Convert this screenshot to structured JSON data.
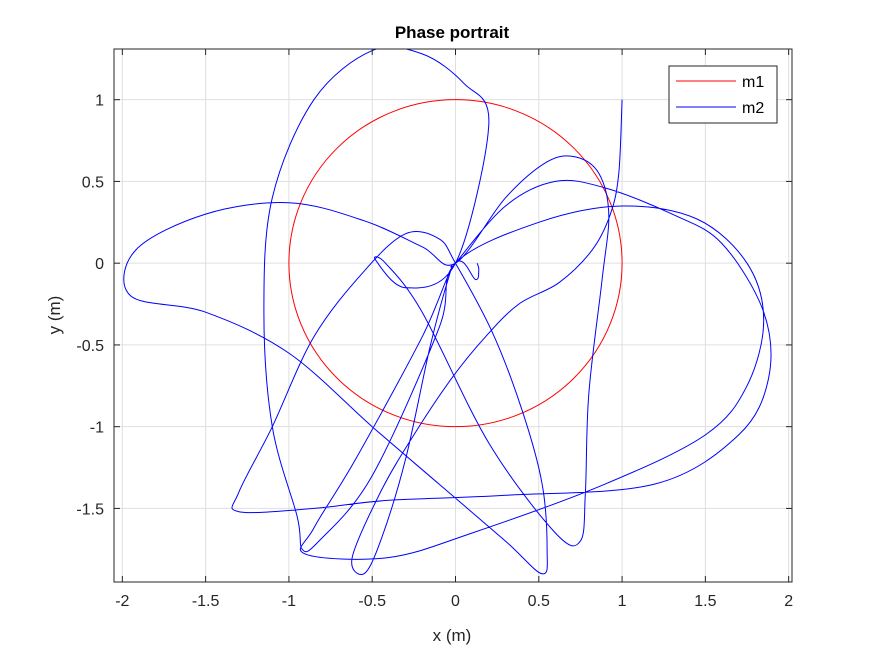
{
  "chart_data": {
    "type": "line",
    "title": "Phase portrait",
    "xlabel": "x (m)",
    "ylabel": "y (m)",
    "xlim": [
      -2.05,
      2.02
    ],
    "ylim": [
      -1.95,
      1.31
    ],
    "xticks": [
      -2,
      -1.5,
      -1,
      -0.5,
      0,
      0.5,
      1,
      1.5,
      2
    ],
    "yticks": [
      -1.5,
      -1,
      -0.5,
      0,
      0.5,
      1
    ],
    "xtick_labels": [
      "-2",
      "-1.5",
      "-1",
      "-0.5",
      "0",
      "0.5",
      "1",
      "1.5",
      "2"
    ],
    "ytick_labels": [
      "-1.5",
      "-1",
      "-0.5",
      "0",
      "0.5",
      "1"
    ],
    "grid": true,
    "legend_position": "top-right",
    "colors": {
      "m1": "#ff0000",
      "m2": "#0000ff"
    },
    "series": [
      {
        "name": "m1",
        "kind": "circle",
        "center": [
          0,
          0
        ],
        "radius": 1
      },
      {
        "name": "m2",
        "points": [
          [
            1.0,
            1.0
          ],
          [
            0.98,
            0.55
          ],
          [
            0.93,
            0.3
          ],
          [
            0.82,
            0.08
          ],
          [
            0.62,
            -0.12
          ],
          [
            0.38,
            -0.25
          ],
          [
            0.18,
            -0.45
          ],
          [
            -0.02,
            -0.7
          ],
          [
            -0.25,
            -1.05
          ],
          [
            -0.45,
            -1.4
          ],
          [
            -0.62,
            -1.8
          ],
          [
            -0.55,
            -1.9
          ],
          [
            -0.45,
            -1.7
          ],
          [
            -0.3,
            -1.2
          ],
          [
            -0.15,
            -0.5
          ],
          [
            -0.03,
            -0.05
          ],
          [
            0,
            0
          ],
          [
            0.3,
            0.35
          ],
          [
            0.6,
            0.5
          ],
          [
            0.9,
            0.46
          ],
          [
            1.3,
            0.3
          ],
          [
            1.6,
            0.12
          ],
          [
            1.85,
            -0.3
          ],
          [
            1.88,
            -0.7
          ],
          [
            1.7,
            -1.05
          ],
          [
            1.2,
            -1.35
          ],
          [
            0.3,
            -1.42
          ],
          [
            -0.4,
            -1.45
          ],
          [
            -0.85,
            -1.5
          ],
          [
            -1.3,
            -1.52
          ],
          [
            -1.3,
            -1.4
          ],
          [
            -1.1,
            -1.0
          ],
          [
            -0.85,
            -0.45
          ],
          [
            -0.55,
            -0.05
          ],
          [
            -0.3,
            0.18
          ],
          [
            -0.1,
            0.15
          ],
          [
            0,
            0
          ],
          [
            0.22,
            -0.42
          ],
          [
            0.4,
            -0.9
          ],
          [
            0.52,
            -1.35
          ],
          [
            0.55,
            -1.75
          ],
          [
            0.52,
            -1.9
          ],
          [
            0.3,
            -1.7
          ],
          [
            -0.1,
            -1.35
          ],
          [
            -0.5,
            -1.0
          ],
          [
            -1.0,
            -0.55
          ],
          [
            -1.5,
            -0.3
          ],
          [
            -1.95,
            -0.2
          ],
          [
            -1.92,
            0.08
          ],
          [
            -1.5,
            0.3
          ],
          [
            -1.0,
            0.37
          ],
          [
            -0.55,
            0.26
          ],
          [
            -0.2,
            0.1
          ],
          [
            0,
            0
          ],
          [
            0.3,
            0.4
          ],
          [
            0.55,
            0.62
          ],
          [
            0.72,
            0.65
          ],
          [
            0.86,
            0.55
          ],
          [
            0.92,
            0.3
          ],
          [
            0.88,
            -0.1
          ],
          [
            0.8,
            -0.8
          ],
          [
            0.78,
            -1.4
          ],
          [
            0.75,
            -1.7
          ],
          [
            0.6,
            -1.65
          ],
          [
            0.2,
            -1.1
          ],
          [
            -0.2,
            -0.3
          ],
          [
            -0.42,
            0.0
          ],
          [
            -0.48,
            0.02
          ],
          [
            -0.3,
            -0.15
          ],
          [
            0,
            0
          ],
          [
            0.2,
            0.85
          ],
          [
            0.05,
            1.1
          ],
          [
            -0.2,
            1.28
          ],
          [
            -0.5,
            1.3
          ],
          [
            -0.85,
            1.0
          ],
          [
            -1.1,
            0.4
          ],
          [
            -1.15,
            -0.3
          ],
          [
            -1.1,
            -1.0
          ],
          [
            -0.95,
            -1.55
          ],
          [
            -0.92,
            -1.75
          ],
          [
            -0.82,
            -1.7
          ],
          [
            -0.5,
            -1.3
          ],
          [
            -0.1,
            -0.4
          ],
          [
            0,
            0
          ],
          [
            0.5,
            0.25
          ],
          [
            1.0,
            0.35
          ],
          [
            1.45,
            0.27
          ],
          [
            1.75,
            0.0
          ],
          [
            1.85,
            -0.35
          ],
          [
            1.75,
            -0.75
          ],
          [
            1.5,
            -1.05
          ],
          [
            0.9,
            -1.35
          ],
          [
            0.1,
            -1.65
          ],
          [
            -0.4,
            -1.8
          ],
          [
            -0.9,
            -1.78
          ],
          [
            -0.85,
            -1.62
          ],
          [
            -0.6,
            -1.2
          ],
          [
            -0.2,
            -0.45
          ],
          [
            0,
            0
          ],
          [
            0.12,
            -0.1
          ],
          [
            0.14,
            -0.04
          ],
          [
            0.13,
            0.0
          ]
        ]
      }
    ]
  }
}
